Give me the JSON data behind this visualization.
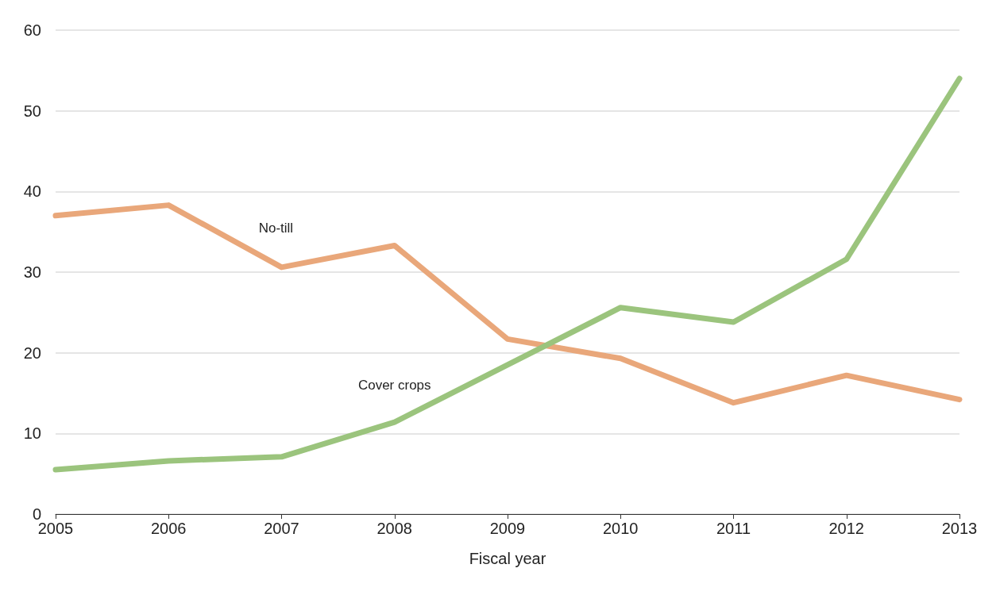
{
  "chart_data": {
    "type": "line",
    "xlabel": "Fiscal year",
    "x": [
      2005,
      2006,
      2007,
      2008,
      2009,
      2010,
      2011,
      2012,
      2013
    ],
    "series": [
      {
        "name": "No-till",
        "color": "#e9a77a",
        "values": [
          37.0,
          38.3,
          30.6,
          33.3,
          21.7,
          19.3,
          13.8,
          17.2,
          14.2
        ]
      },
      {
        "name": "Cover crops",
        "color": "#9bc47d",
        "values": [
          5.5,
          6.6,
          7.1,
          11.4,
          18.5,
          25.6,
          23.8,
          31.6,
          54
        ]
      }
    ],
    "xlim": [
      2005,
      2013
    ],
    "xticks": [
      2005,
      2006,
      2007,
      2008,
      2009,
      2010,
      2011,
      2012,
      2013
    ],
    "ylim": [
      0,
      60
    ],
    "yticks": [
      0,
      10,
      20,
      30,
      40,
      50,
      60
    ],
    "grid": "y",
    "legend": false,
    "marker": "none",
    "line_style": "solid"
  }
}
